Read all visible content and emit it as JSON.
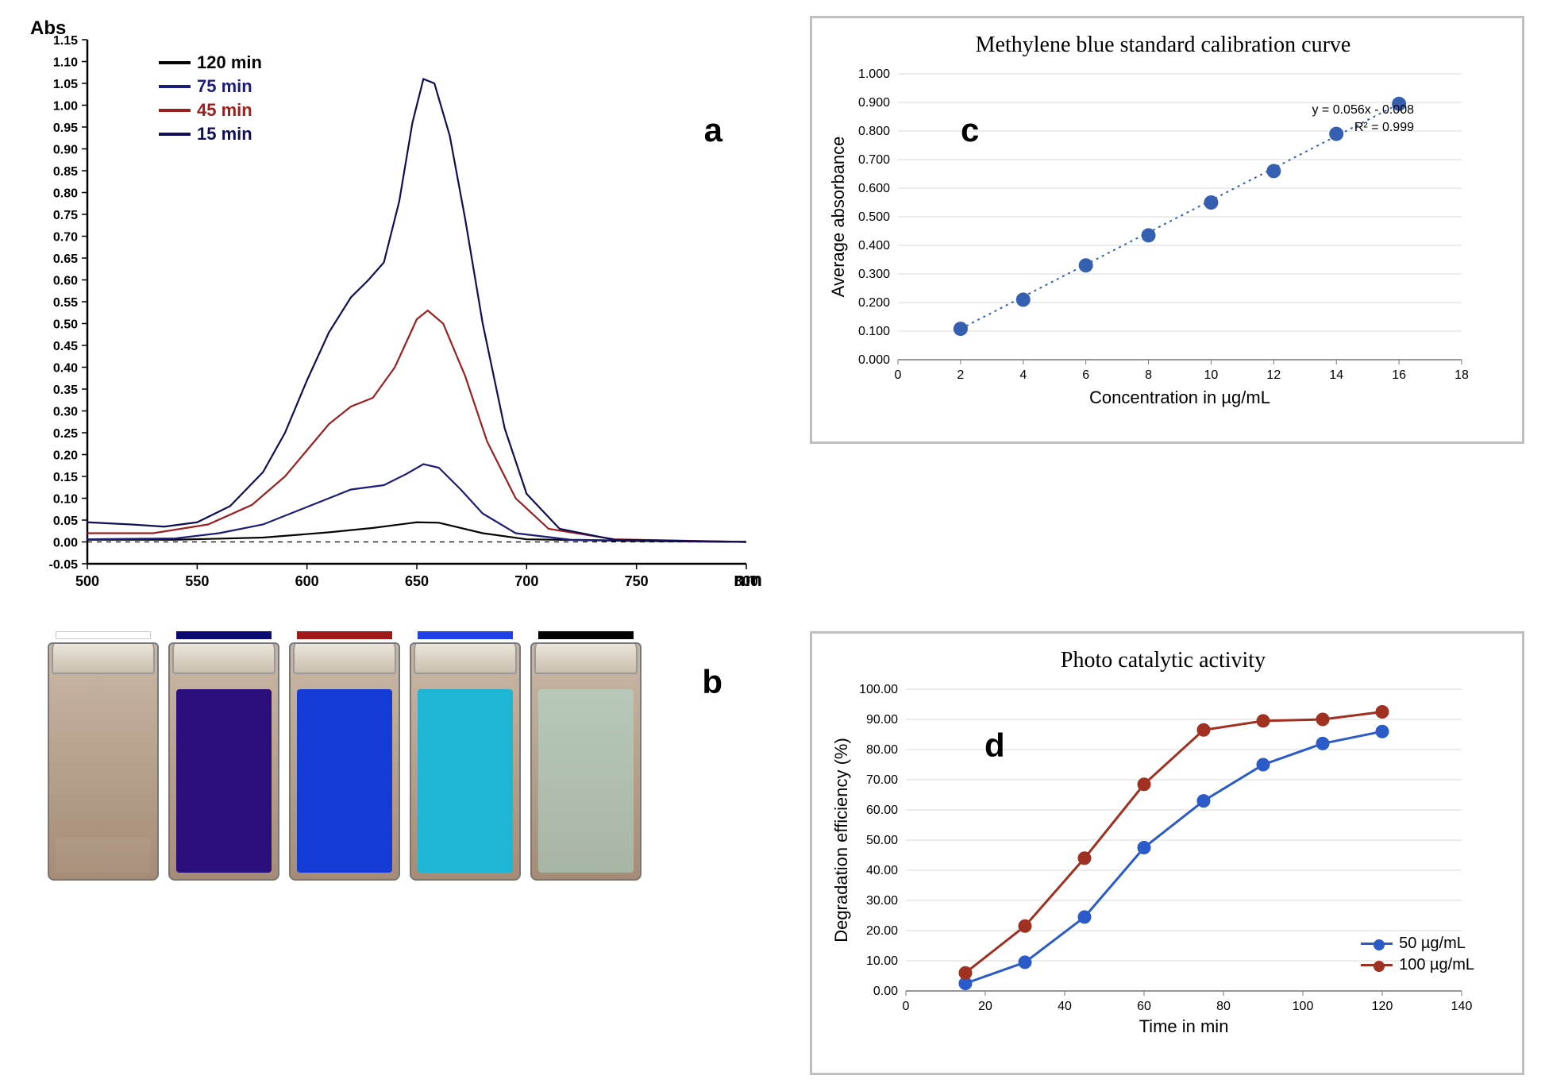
{
  "figure": {
    "panel_a": {
      "label": "a",
      "type": "line",
      "ylabel": "Abs",
      "xlabel": "nm",
      "xlim": [
        500,
        800
      ],
      "ylim": [
        -0.05,
        1.15
      ],
      "xtick_step": 50,
      "yticks": [
        -0.05,
        0.0,
        0.05,
        0.1,
        0.15,
        0.2,
        0.25,
        0.3,
        0.35,
        0.4,
        0.45,
        0.5,
        0.55,
        0.6,
        0.65,
        0.7,
        0.75,
        0.8,
        0.85,
        0.9,
        0.95,
        1.0,
        1.05,
        1.1,
        1.15
      ],
      "background_color": "#ffffff",
      "axis_color": "#000000",
      "line_width": 2.2,
      "series": [
        {
          "name": "120 min",
          "color": "#050505",
          "data": [
            [
              500,
              0.005
            ],
            [
              540,
              0.005
            ],
            [
              580,
              0.01
            ],
            [
              610,
              0.022
            ],
            [
              630,
              0.032
            ],
            [
              650,
              0.045
            ],
            [
              660,
              0.044
            ],
            [
              680,
              0.02
            ],
            [
              700,
              0.006
            ],
            [
              750,
              0.002
            ],
            [
              800,
              0.0
            ]
          ]
        },
        {
          "name": "75 min",
          "color": "#1c1c7a",
          "data": [
            [
              500,
              0.006
            ],
            [
              540,
              0.008
            ],
            [
              560,
              0.02
            ],
            [
              580,
              0.04
            ],
            [
              595,
              0.07
            ],
            [
              610,
              0.1
            ],
            [
              620,
              0.12
            ],
            [
              635,
              0.13
            ],
            [
              645,
              0.155
            ],
            [
              653,
              0.178
            ],
            [
              660,
              0.17
            ],
            [
              670,
              0.12
            ],
            [
              680,
              0.065
            ],
            [
              695,
              0.02
            ],
            [
              720,
              0.005
            ],
            [
              800,
              0.0
            ]
          ]
        },
        {
          "name": "45 min",
          "color": "#9a2020",
          "data": [
            [
              500,
              0.02
            ],
            [
              530,
              0.02
            ],
            [
              555,
              0.04
            ],
            [
              575,
              0.085
            ],
            [
              590,
              0.15
            ],
            [
              600,
              0.21
            ],
            [
              610,
              0.27
            ],
            [
              620,
              0.31
            ],
            [
              630,
              0.33
            ],
            [
              640,
              0.4
            ],
            [
              650,
              0.51
            ],
            [
              655,
              0.53
            ],
            [
              662,
              0.5
            ],
            [
              672,
              0.38
            ],
            [
              682,
              0.23
            ],
            [
              695,
              0.1
            ],
            [
              710,
              0.03
            ],
            [
              740,
              0.006
            ],
            [
              800,
              0.0
            ]
          ]
        },
        {
          "name": "15 min",
          "color": "#0f0f55",
          "data": [
            [
              500,
              0.045
            ],
            [
              520,
              0.04
            ],
            [
              535,
              0.035
            ],
            [
              550,
              0.045
            ],
            [
              565,
              0.082
            ],
            [
              580,
              0.16
            ],
            [
              590,
              0.25
            ],
            [
              600,
              0.37
            ],
            [
              610,
              0.48
            ],
            [
              620,
              0.56
            ],
            [
              628,
              0.6
            ],
            [
              635,
              0.64
            ],
            [
              642,
              0.78
            ],
            [
              648,
              0.96
            ],
            [
              653,
              1.06
            ],
            [
              658,
              1.05
            ],
            [
              665,
              0.93
            ],
            [
              672,
              0.74
            ],
            [
              680,
              0.5
            ],
            [
              690,
              0.26
            ],
            [
              700,
              0.11
            ],
            [
              715,
              0.03
            ],
            [
              740,
              0.005
            ],
            [
              800,
              0.0
            ]
          ]
        }
      ],
      "zero_line_dashed": true
    },
    "panel_b": {
      "label": "b",
      "type": "photo-vials",
      "vials": [
        {
          "mark_color": "#ffffff",
          "liquid_color": "rgba(255,255,255,0.05)",
          "fill_height_pct": 15
        },
        {
          "mark_color": "#0a0a70",
          "liquid_color": "#2a0f7a",
          "fill_height_pct": 78
        },
        {
          "mark_color": "#a01818",
          "liquid_color": "#153bd6",
          "fill_height_pct": 78
        },
        {
          "mark_color": "#2040e8",
          "liquid_color": "#1fb6d6",
          "fill_height_pct": 78
        },
        {
          "mark_color": "#000000",
          "liquid_color": "rgba(170,230,220,0.45)",
          "fill_height_pct": 78
        }
      ]
    },
    "panel_c": {
      "label": "c",
      "type": "scatter-trend",
      "title": "Methylene blue standard calibration curve",
      "xlabel": "Concentration in µg/mL",
      "ylabel": "Average absorbance",
      "xlim": [
        0,
        18
      ],
      "ylim": [
        0.0,
        1.0
      ],
      "xtick_step": 2,
      "ytick_step": 0.1,
      "ytick_decimals": 3,
      "grid": true,
      "grid_color": "#d9d9d9",
      "border_color": "#bfbfbf",
      "marker_color": "#355fb0",
      "marker_size": 9,
      "trend_color": "#355fb0",
      "trend_dashed": true,
      "equation_text": "y = 0.056x - 0.008",
      "r2_text": "R² = 0.999",
      "equation_color": "#355fb0",
      "data": [
        [
          2,
          0.108
        ],
        [
          4,
          0.21
        ],
        [
          6,
          0.33
        ],
        [
          8,
          0.435
        ],
        [
          10,
          0.55
        ],
        [
          12,
          0.66
        ],
        [
          14,
          0.79
        ],
        [
          16,
          0.895
        ]
      ]
    },
    "panel_d": {
      "label": "d",
      "type": "line-markers",
      "title": "Photo catalytic  activity",
      "xlabel": "Time in min",
      "ylabel": "Degradation efficiency (%)",
      "xlim": [
        0,
        140
      ],
      "ylim": [
        0.0,
        100.0
      ],
      "xtick_step": 20,
      "ytick_step": 10.0,
      "ytick_decimals": 2,
      "grid": true,
      "grid_color": "#d9d9d9",
      "border_color": "#bfbfbf",
      "line_width": 3,
      "marker_size": 8,
      "series": [
        {
          "name": "50 µg/mL",
          "color": "#2a5bc8",
          "data": [
            [
              15,
              2.5
            ],
            [
              30,
              9.5
            ],
            [
              45,
              24.5
            ],
            [
              60,
              47.5
            ],
            [
              75,
              63.0
            ],
            [
              90,
              75.0
            ],
            [
              105,
              82.0
            ],
            [
              120,
              86.0
            ]
          ]
        },
        {
          "name": "100 µg/mL",
          "color": "#a03020",
          "data": [
            [
              15,
              6.0
            ],
            [
              30,
              21.5
            ],
            [
              45,
              44.0
            ],
            [
              60,
              68.5
            ],
            [
              75,
              86.5
            ],
            [
              90,
              89.5
            ],
            [
              105,
              90.0
            ],
            [
              120,
              92.5
            ]
          ]
        }
      ]
    }
  }
}
